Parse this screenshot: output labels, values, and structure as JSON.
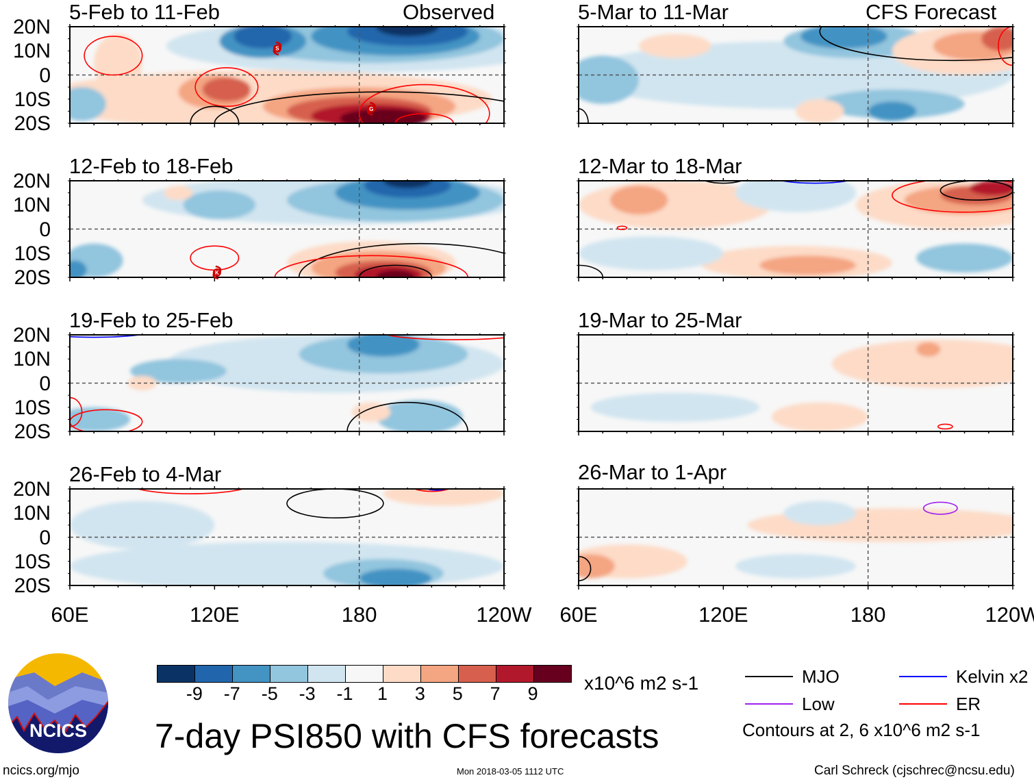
{
  "figure": {
    "title": "7-day PSI850 with CFS forecasts",
    "url": "ncics.org/mjo",
    "timestamp": "Mon 2018-03-05 1112 UTC",
    "author": "Carl Schreck (cjschrec@ncsu.edu)",
    "logo_text": "NCICS"
  },
  "headers": {
    "left": "Observed",
    "right": "CFS Forecast"
  },
  "panels": [
    {
      "title": "5-Feb to 11-Feb",
      "column": "observed"
    },
    {
      "title": "12-Feb to 18-Feb",
      "column": "observed"
    },
    {
      "title": "19-Feb to 25-Feb",
      "column": "observed"
    },
    {
      "title": "26-Feb to 4-Mar",
      "column": "observed"
    },
    {
      "title": "5-Mar to 11-Mar",
      "column": "forecast"
    },
    {
      "title": "12-Mar to 18-Mar",
      "column": "forecast"
    },
    {
      "title": "19-Mar to 25-Mar",
      "column": "forecast"
    },
    {
      "title": "26-Mar to 1-Apr",
      "column": "forecast"
    }
  ],
  "lat_labels": [
    "20N",
    "10N",
    "0",
    "10S",
    "20S"
  ],
  "lon_labels": [
    "60E",
    "120E",
    "180",
    "120W"
  ],
  "storms": [
    {
      "panel": 0,
      "label": "S"
    },
    {
      "panel": 0,
      "label": "G"
    },
    {
      "panel": 1,
      "label": "K"
    }
  ],
  "colorbar": {
    "units": "x10^6 m2 s-1",
    "labels": [
      "-9",
      "-7",
      "-5",
      "-3",
      "-1",
      "1",
      "3",
      "5",
      "7",
      "9"
    ],
    "colors": [
      "#0b3264",
      "#2166ac",
      "#4393c3",
      "#92c5de",
      "#d1e5f0",
      "#f7f7f7",
      "#fddbc7",
      "#f4a582",
      "#d6604d",
      "#b2182b",
      "#67001f"
    ]
  },
  "legend": {
    "items": [
      {
        "label": "MJO",
        "color": "#000000"
      },
      {
        "label": "Kelvin x2",
        "color": "#0000ff"
      },
      {
        "label": "Low",
        "color": "#a020f0"
      },
      {
        "label": "ER",
        "color": "#ff0000"
      }
    ],
    "note": "Contours at 2, 6 x10^6 m2 s-1"
  }
}
